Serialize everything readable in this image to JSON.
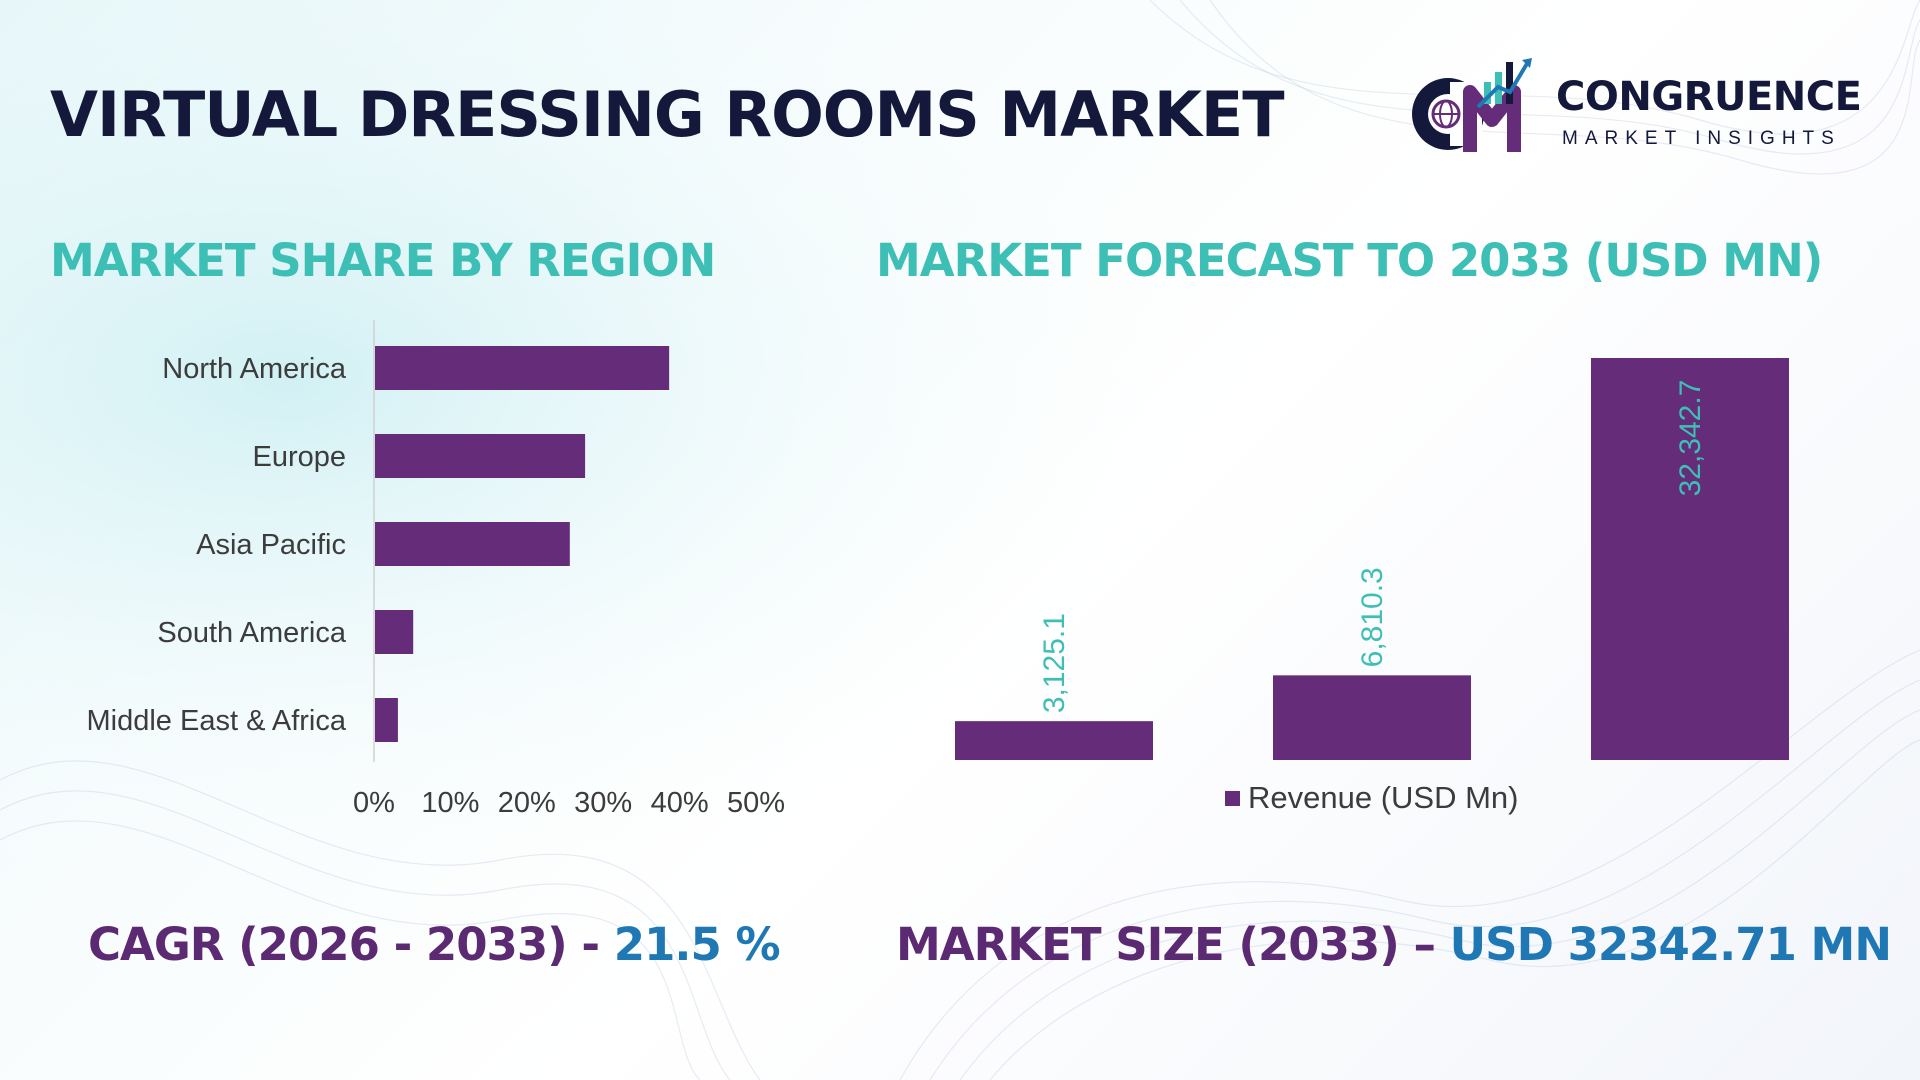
{
  "title": "VIRTUAL DRESSING ROOMS MARKET",
  "logo": {
    "name": "CONGRUENCE",
    "tagline": "MARKET INSIGHTS"
  },
  "colors": {
    "bar": "#652d79",
    "accent_teal": "#3dbfb5",
    "title_dark": "#14183a",
    "kpi_label": "#5c2a72",
    "kpi_value": "#1f78b4"
  },
  "sections": {
    "region_title": "MARKET SHARE BY REGION",
    "forecast_title": "MARKET FORECAST TO 2033 (USD MN)"
  },
  "kpis": {
    "cagr_label": "CAGR (2026 - 2033) -",
    "cagr_value": "21.5 %",
    "size_label": "MARKET SIZE (2033) –",
    "size_value": "USD 32342.71 MN"
  },
  "chart_data": [
    {
      "type": "bar",
      "orientation": "horizontal",
      "categories": [
        "North America",
        "Europe",
        "Asia Pacific",
        "South America",
        "Middle East & Africa"
      ],
      "values": [
        38.5,
        27.5,
        25.5,
        5,
        3
      ],
      "xlim": [
        0,
        50
      ],
      "ticks": [
        "0%",
        "10%",
        "20%",
        "30%",
        "40%",
        "50%"
      ],
      "grid": false
    },
    {
      "type": "bar",
      "categories": [
        "",
        "",
        ""
      ],
      "series": [
        {
          "name": "Revenue (USD Mn)",
          "values": [
            3125.1,
            6810.3,
            32342.7
          ]
        }
      ],
      "data_labels": [
        "3,125.1",
        "6,810.3",
        "32,342.7"
      ],
      "legend": "bottom",
      "grid": false
    }
  ]
}
